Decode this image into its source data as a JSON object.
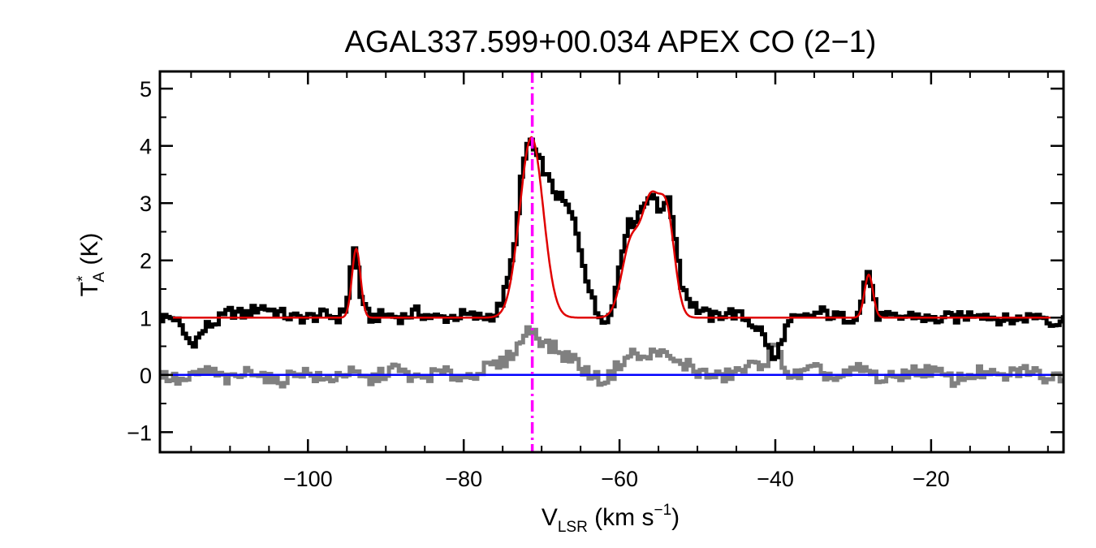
{
  "chart_data": {
    "type": "line",
    "title": "AGAL337.599+00.034  APEX CO (2−1)",
    "xlabel": {
      "main": "V",
      "sub": "LSR",
      "unit_pre": " (km s",
      "sup": "−1",
      "unit_post": ")"
    },
    "ylabel": {
      "main": "T",
      "sup": "*",
      "sub": "A",
      "unit": " (K)"
    },
    "xlim": [
      -119,
      -3
    ],
    "ylim": [
      -1.35,
      5.3
    ],
    "xticks": [
      -100,
      -80,
      -60,
      -40,
      -20
    ],
    "xtick_labels": [
      "−100",
      "−80",
      "−60",
      "−40",
      "−20"
    ],
    "yticks": [
      -1,
      0,
      1,
      2,
      3,
      4,
      5
    ],
    "ytick_labels": [
      "−1",
      "0",
      "1",
      "2",
      "3",
      "4",
      "5"
    ],
    "grid": false,
    "legend": "none",
    "markers": {
      "vertical_line_x": -71.2,
      "zero_line_y": 0
    },
    "colors": {
      "observed": "#000000",
      "fit": "#e00000",
      "residual": "#808080",
      "baseline": "#0000ff",
      "velocity_marker": "#ff00ff"
    },
    "series": [
      {
        "role": "observed",
        "x": [
          -119,
          -117,
          -116,
          -115,
          -114,
          -113,
          -112,
          -110,
          -108,
          -106,
          -104,
          -102,
          -100,
          -98,
          -96,
          -95,
          -94.5,
          -94,
          -93.5,
          -93,
          -92,
          -90,
          -88,
          -86,
          -84,
          -82,
          -80,
          -78,
          -76,
          -75,
          -74,
          -73,
          -72.5,
          -72,
          -71.5,
          -71,
          -70.5,
          -70,
          -69.5,
          -69,
          -68,
          -67,
          -66,
          -65,
          -64,
          -63,
          -62,
          -61,
          -60,
          -59.5,
          -59,
          -58,
          -57,
          -56.5,
          -56,
          -55.5,
          -55,
          -54.5,
          -54,
          -53.5,
          -53,
          -52.5,
          -52,
          -51,
          -50,
          -48,
          -46,
          -44,
          -42,
          -41,
          -40.5,
          -40,
          -39.5,
          -39,
          -38,
          -36,
          -34,
          -32,
          -30,
          -29,
          -28.5,
          -28,
          -27.5,
          -27,
          -26,
          -24,
          -22,
          -20,
          -18,
          -16,
          -14,
          -12,
          -10,
          -8,
          -6,
          -4,
          -3
        ],
        "y": [
          1.0,
          1.0,
          0.75,
          0.55,
          0.65,
          0.85,
          0.9,
          1.1,
          1.05,
          1.2,
          1.1,
          1.0,
          1.0,
          1.05,
          1.0,
          1.2,
          1.8,
          2.2,
          1.8,
          1.2,
          1.0,
          1.05,
          1.0,
          1.1,
          1.0,
          1.0,
          1.05,
          1.0,
          1.05,
          1.3,
          1.8,
          2.8,
          3.5,
          3.9,
          4.15,
          3.95,
          3.75,
          3.7,
          3.55,
          3.35,
          3.15,
          3.0,
          2.75,
          2.2,
          1.6,
          1.1,
          1.0,
          1.05,
          1.9,
          2.3,
          2.6,
          2.7,
          2.95,
          3.05,
          3.25,
          3.05,
          2.85,
          2.95,
          3.1,
          2.95,
          2.6,
          2.05,
          1.6,
          1.3,
          1.15,
          1.0,
          1.1,
          1.0,
          0.8,
          0.55,
          0.35,
          0.2,
          0.45,
          0.7,
          0.95,
          1.0,
          1.1,
          1.0,
          1.0,
          1.2,
          1.6,
          1.85,
          1.45,
          1.05,
          1.0,
          1.0,
          1.05,
          0.95,
          1.0,
          1.0,
          1.1,
          1.0,
          0.95,
          1.0,
          1.05,
          0.9,
          0.95
        ]
      },
      {
        "role": "gaussian-fit",
        "baseline": 1.0,
        "components": [
          {
            "center": -93.8,
            "amp": 1.2,
            "sigma": 0.55
          },
          {
            "center": -71.3,
            "amp": 3.15,
            "sigma": 1.5
          },
          {
            "center": -58.5,
            "amp": 1.3,
            "sigma": 1.2
          },
          {
            "center": -56.0,
            "amp": 1.85,
            "sigma": 1.1
          },
          {
            "center": -53.9,
            "amp": 1.7,
            "sigma": 1.0
          },
          {
            "center": -28.0,
            "amp": 0.75,
            "sigma": 0.55
          }
        ]
      },
      {
        "role": "residual",
        "x": [
          -119,
          -116,
          -113,
          -110,
          -107,
          -104,
          -101,
          -98,
          -95,
          -92,
          -89,
          -86,
          -83,
          -80,
          -77,
          -75,
          -73,
          -72,
          -71,
          -70,
          -69,
          -68,
          -67,
          -66,
          -65,
          -64,
          -63,
          -62,
          -61,
          -60,
          -59,
          -58,
          -57,
          -56,
          -55,
          -54,
          -53,
          -52,
          -51,
          -50,
          -47,
          -44,
          -41,
          -40,
          -38,
          -35,
          -32,
          -29,
          -26,
          -23,
          -20,
          -17,
          -14,
          -11,
          -8,
          -5,
          -3
        ],
        "y": [
          0.0,
          -0.12,
          0.08,
          -0.1,
          0.1,
          -0.15,
          0.08,
          -0.1,
          0.05,
          -0.1,
          0.12,
          -0.08,
          0.05,
          -0.05,
          0.12,
          0.2,
          0.5,
          0.75,
          0.8,
          0.6,
          0.5,
          0.45,
          0.3,
          0.35,
          0.1,
          0.05,
          -0.05,
          -0.1,
          0.0,
          0.2,
          0.3,
          0.4,
          0.25,
          0.35,
          0.45,
          0.3,
          0.25,
          0.15,
          0.2,
          0.05,
          -0.05,
          0.1,
          0.25,
          0.5,
          -0.05,
          0.1,
          -0.08,
          0.12,
          -0.1,
          0.05,
          0.08,
          -0.1,
          0.05,
          -0.05,
          0.1,
          -0.05,
          0.0
        ]
      }
    ]
  }
}
